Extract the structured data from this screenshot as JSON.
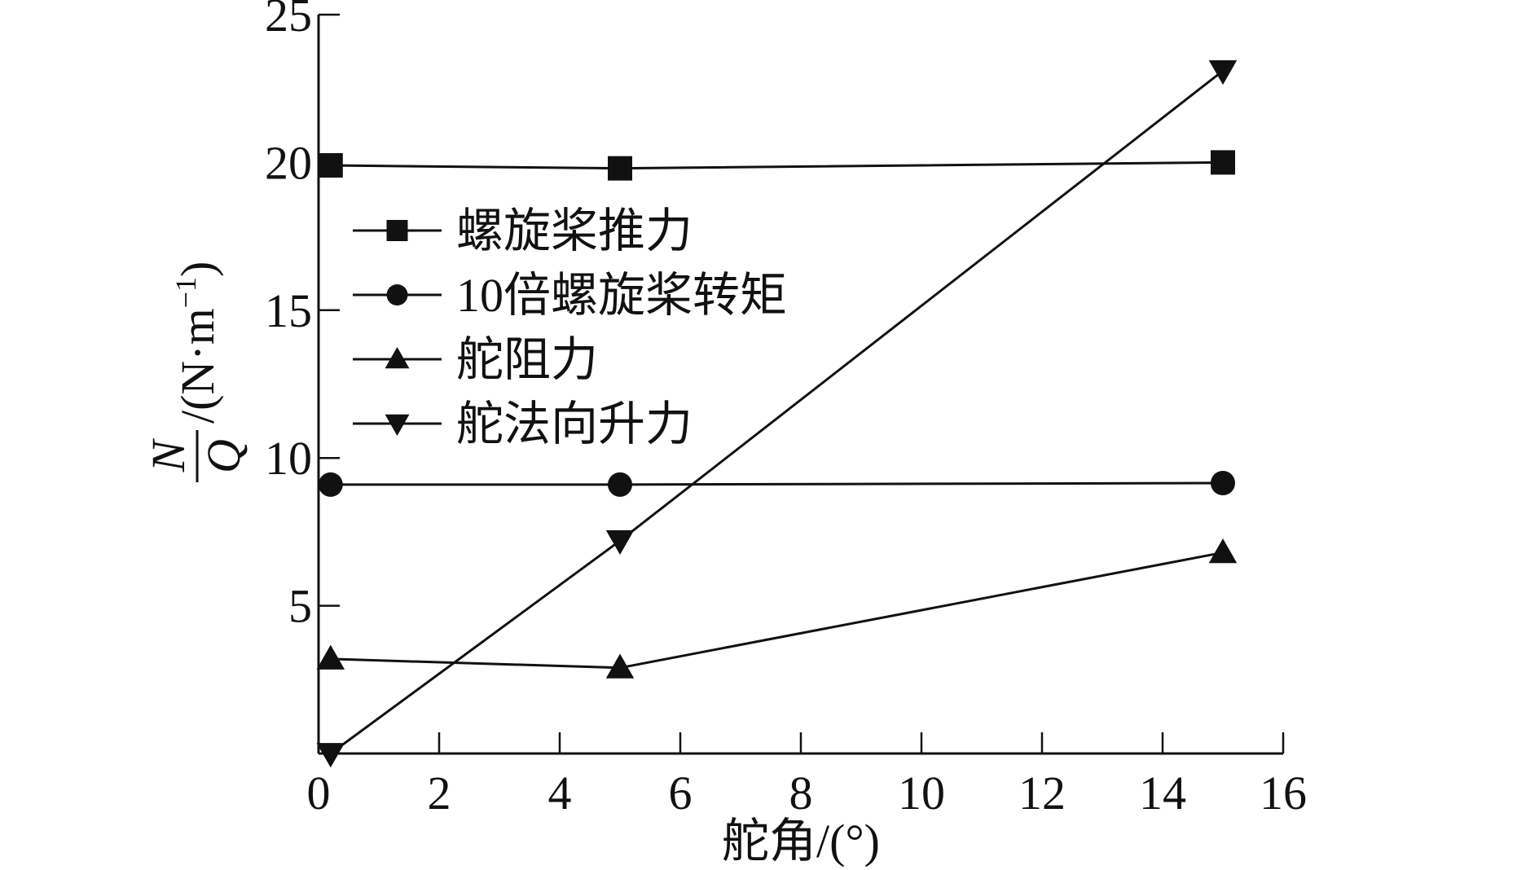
{
  "chart_data": {
    "type": "line",
    "xlabel": "舵角/(°)",
    "ylabel": {
      "numerator": "N",
      "denominator": "Q",
      "unit_prefix": "/(N·m",
      "unit_sup": "−1",
      "unit_suffix": ")"
    },
    "xlim": [
      0,
      16
    ],
    "ylim": [
      0,
      25
    ],
    "xticks": [
      0,
      2,
      4,
      6,
      8,
      10,
      12,
      14,
      16
    ],
    "yticks": [
      5,
      10,
      15,
      20,
      25
    ],
    "x_origin_label": "0",
    "grid": false,
    "legend_position": "upper-left",
    "series": [
      {
        "name": "螺旋桨推力",
        "marker": "square",
        "x": [
          0.2,
          5,
          15
        ],
        "y": [
          19.9,
          19.8,
          20.0
        ]
      },
      {
        "name": "10倍螺旋桨转矩",
        "marker": "circle",
        "x": [
          0.2,
          5,
          15
        ],
        "y": [
          9.1,
          9.1,
          9.15
        ]
      },
      {
        "name": "舵阻力",
        "marker": "triangle-up",
        "x": [
          0.2,
          5,
          15
        ],
        "y": [
          3.2,
          2.9,
          6.8
        ]
      },
      {
        "name": "舵法向升力",
        "marker": "triangle-down",
        "x": [
          0.2,
          5,
          15
        ],
        "y": [
          0.0,
          7.2,
          23.1
        ]
      }
    ]
  },
  "colors": {
    "ink": "#111111",
    "background": "#ffffff"
  }
}
